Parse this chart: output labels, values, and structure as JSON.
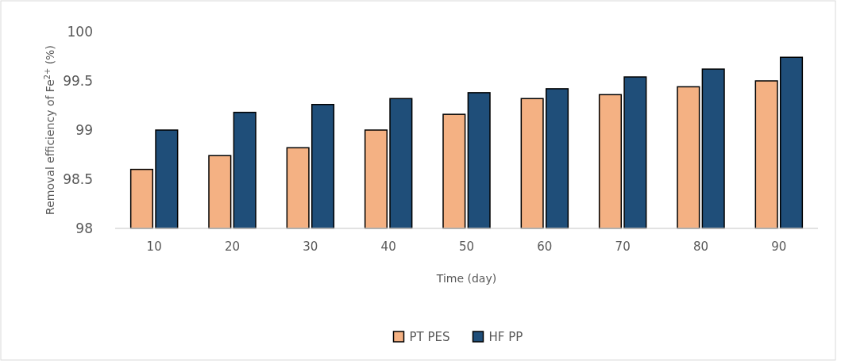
{
  "chart_data": {
    "type": "bar",
    "xlabel": "Time (day)",
    "ylabel": "Removal efficiency of Fe$^{2+}$ (%)",
    "categories": [
      "10",
      "20",
      "30",
      "40",
      "50",
      "60",
      "70",
      "80",
      "90"
    ],
    "series": [
      {
        "name": "PT PES",
        "color": "#f4b183",
        "values": [
          98.6,
          98.74,
          98.82,
          99.0,
          99.16,
          99.32,
          99.36,
          99.44,
          99.5
        ]
      },
      {
        "name": "HF PP",
        "color": "#1f4e79",
        "values": [
          99.0,
          99.18,
          99.26,
          99.32,
          99.38,
          99.42,
          99.54,
          99.62,
          99.74
        ]
      }
    ],
    "ylim": [
      98,
      100
    ],
    "yticks": [
      98,
      98.5,
      99,
      99.5,
      100
    ],
    "grid": false,
    "legend": "bottom"
  }
}
